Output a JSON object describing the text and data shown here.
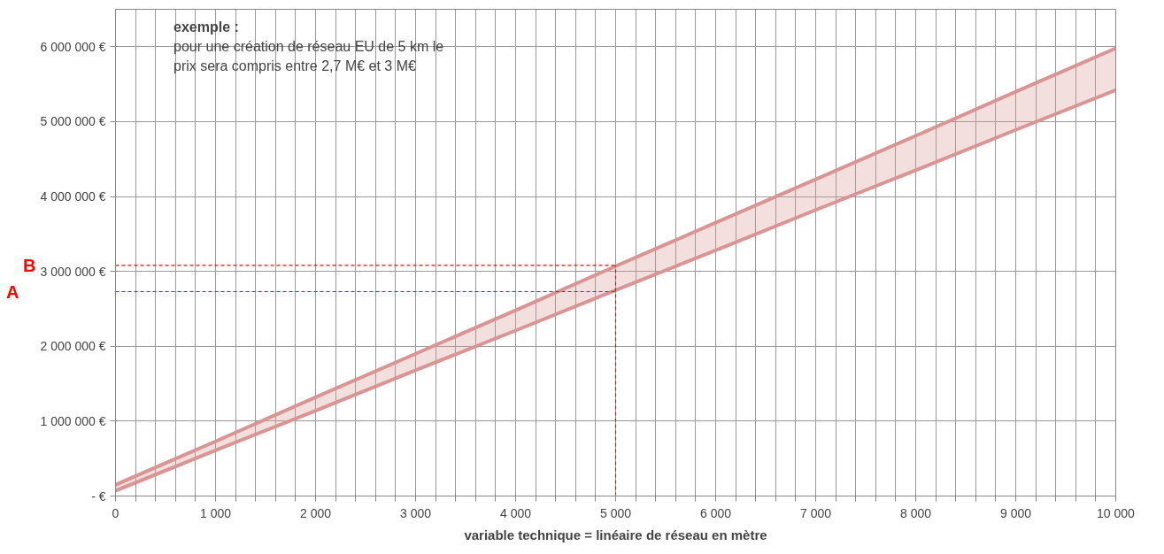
{
  "chart_data": {
    "type": "line",
    "xlabel": "variable technique = linéaire de réseau en mètre",
    "x": [
      0,
      1000,
      2000,
      3000,
      4000,
      5000,
      6000,
      7000,
      8000,
      9000,
      10000
    ],
    "series": [
      {
        "color": "#d99594",
        "values": [
          150000,
          730000,
          1320000,
          1900000,
          2480000,
          3070000,
          3650000,
          4230000,
          4810000,
          5400000,
          5980000
        ],
        "lower": [
          70000,
          610000,
          1140000,
          1680000,
          2210000,
          2750000,
          3280000,
          3820000,
          4350000,
          4890000,
          5420000
        ],
        "upper": [
          150000,
          730000,
          1320000,
          1900000,
          2480000,
          3070000,
          3650000,
          4230000,
          4810000,
          5400000,
          5980000
        ]
      },
      {
        "color": "#d99594",
        "values": [
          70000,
          610000,
          1140000,
          1680000,
          2210000,
          2750000,
          3280000,
          3820000,
          4350000,
          4890000,
          5420000
        ]
      }
    ],
    "xlim": [
      0,
      10000
    ],
    "xticks": [
      {
        "value": 0,
        "label": "0"
      },
      {
        "value": 200,
        "label": null
      },
      {
        "value": 400,
        "label": null
      },
      {
        "value": 600,
        "label": null
      },
      {
        "value": 800,
        "label": null
      },
      {
        "value": 1000,
        "label": "1 000"
      },
      {
        "value": 1200,
        "label": null
      },
      {
        "value": 1400,
        "label": null
      },
      {
        "value": 1600,
        "label": null
      },
      {
        "value": 1800,
        "label": null
      },
      {
        "value": 2000,
        "label": "2 000"
      },
      {
        "value": 2200,
        "label": null
      },
      {
        "value": 2400,
        "label": null
      },
      {
        "value": 2600,
        "label": null
      },
      {
        "value": 2800,
        "label": null
      },
      {
        "value": 3000,
        "label": "3 000"
      },
      {
        "value": 3200,
        "label": null
      },
      {
        "value": 3400,
        "label": null
      },
      {
        "value": 3600,
        "label": null
      },
      {
        "value": 3800,
        "label": null
      },
      {
        "value": 4000,
        "label": "4 000"
      },
      {
        "value": 4200,
        "label": null
      },
      {
        "value": 4400,
        "label": null
      },
      {
        "value": 4600,
        "label": null
      },
      {
        "value": 4800,
        "label": null
      },
      {
        "value": 5000,
        "label": "5 000"
      },
      {
        "value": 5200,
        "label": null
      },
      {
        "value": 5400,
        "label": null
      },
      {
        "value": 5600,
        "label": null
      },
      {
        "value": 5800,
        "label": null
      },
      {
        "value": 6000,
        "label": "6 000"
      },
      {
        "value": 6200,
        "label": null
      },
      {
        "value": 6400,
        "label": null
      },
      {
        "value": 6600,
        "label": null
      },
      {
        "value": 6800,
        "label": null
      },
      {
        "value": 7000,
        "label": "7 000"
      },
      {
        "value": 7200,
        "label": null
      },
      {
        "value": 7400,
        "label": null
      },
      {
        "value": 7600,
        "label": null
      },
      {
        "value": 7800,
        "label": null
      },
      {
        "value": 8000,
        "label": "8 000"
      },
      {
        "value": 8200,
        "label": null
      },
      {
        "value": 8400,
        "label": null
      },
      {
        "value": 8600,
        "label": null
      },
      {
        "value": 8800,
        "label": null
      },
      {
        "value": 9000,
        "label": "9 000"
      },
      {
        "value": 9200,
        "label": null
      },
      {
        "value": 9400,
        "label": null
      },
      {
        "value": 9600,
        "label": null
      },
      {
        "value": 9800,
        "label": null
      },
      {
        "value": 10000,
        "label": "10 000"
      }
    ],
    "ylim": [
      0,
      6500000
    ],
    "yticks": [
      {
        "value": 0,
        "label": "- €"
      },
      {
        "value": 1000000,
        "label": "1 000 000 €"
      },
      {
        "value": 2000000,
        "label": "2 000 000 €"
      },
      {
        "value": 3000000,
        "label": "3 000 000 €"
      },
      {
        "value": 4000000,
        "label": "4 000 000 €"
      },
      {
        "value": 5000000,
        "label": "5 000 000 €"
      },
      {
        "value": 6000000,
        "label": "6 000 000 €"
      }
    ],
    "grid": true,
    "ref_lines": [
      {
        "axis": "y",
        "value": 3080000,
        "label": "B",
        "color": "#ff0000",
        "line_style": "dashed"
      },
      {
        "axis": "y",
        "value": 2730000,
        "label": "A",
        "color": "#ff0000",
        "line_style": "dashed"
      },
      {
        "axis": "x",
        "value": 5000,
        "color": "#ff0000",
        "line_style": "dashed"
      }
    ],
    "annotations": [
      "exemple :",
      "pour une création de réseau EU de 5 km le",
      "prix sera compris entre 2,7 M€ et 3 M€"
    ]
  }
}
